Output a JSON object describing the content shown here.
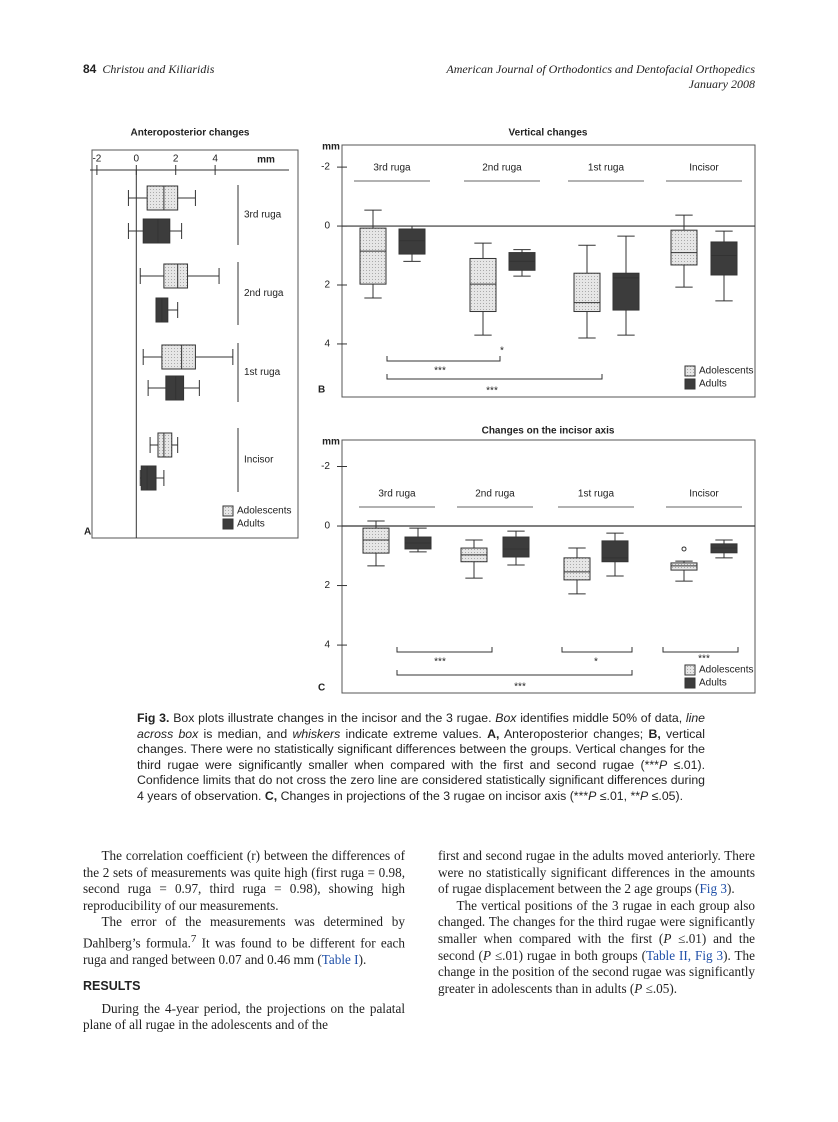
{
  "header": {
    "page": "84",
    "authors": "Christou and Kiliaridis",
    "journal": "American Journal of Orthodontics and Dentofacial Orthopedics",
    "date": "January 2008"
  },
  "figure": {
    "panels": [
      {
        "letter": "A",
        "title": "Anteroposterior changes",
        "unit": "mm",
        "lim": [
          -2.35,
          7.75
        ],
        "ticks": [
          -2,
          0,
          2,
          4
        ],
        "groups": [
          "3rd ruga",
          "2nd ruga",
          "1st ruga",
          "Incisor"
        ],
        "series": [
          {
            "name": "Adolescents",
            "color": "#dcdcdc",
            "boxes": [
              {
                "min": -0.4,
                "q1": 0.55,
                "median": 1.4,
                "q3": 2.1,
                "max": 3.0
              },
              {
                "min": 0.2,
                "q1": 1.4,
                "median": 2.1,
                "q3": 2.6,
                "max": 4.2
              },
              {
                "min": 0.35,
                "q1": 1.3,
                "median": 2.3,
                "q3": 3.0,
                "max": 4.9
              },
              {
                "min": 0.7,
                "q1": 1.1,
                "median": 1.4,
                "q3": 1.8,
                "max": 2.1
              }
            ]
          },
          {
            "name": "Adults",
            "color": "#3c3c3c",
            "boxes": [
              {
                "min": -0.4,
                "q1": 0.35,
                "median": 1.1,
                "q3": 1.7,
                "max": 2.3
              },
              {
                "min": 1.0,
                "q1": 1.0,
                "median": 1.3,
                "q3": 1.6,
                "max": 2.1
              },
              {
                "min": 0.6,
                "q1": 1.5,
                "median": 2.0,
                "q3": 2.4,
                "max": 3.2
              },
              {
                "min": 0.2,
                "q1": 0.25,
                "median": 0.55,
                "q3": 1.0,
                "max": 1.4
              }
            ]
          }
        ]
      },
      {
        "letter": "B",
        "title": "Vertical changes",
        "unit": "mm",
        "lim": [
          -2.75,
          5.8
        ],
        "ticks": [
          -2,
          0,
          2,
          4
        ],
        "groups": [
          "3rd ruga",
          "2nd ruga",
          "1st ruga",
          "Incisor"
        ],
        "series": [
          {
            "name": "Adolescents",
            "color": "#dcdcdc",
            "boxes": [
              {
                "min": -0.54,
                "q1": 0.07,
                "median": 0.85,
                "q3": 1.97,
                "max": 2.44
              },
              {
                "min": 0.58,
                "q1": 1.1,
                "median": 1.97,
                "q3": 2.9,
                "max": 3.7
              },
              {
                "min": 0.65,
                "q1": 1.6,
                "median": 2.6,
                "q3": 2.9,
                "max": 3.8
              },
              {
                "min": -0.37,
                "q1": 0.14,
                "median": 0.9,
                "q3": 1.32,
                "max": 2.07
              }
            ]
          },
          {
            "name": "Adults",
            "color": "#3c3c3c",
            "boxes": [
              {
                "min": 0.0,
                "q1": 0.1,
                "median": 0.5,
                "q3": 0.95,
                "max": 1.2
              },
              {
                "min": 0.8,
                "q1": 0.9,
                "median": 1.2,
                "q3": 1.5,
                "max": 1.7
              },
              {
                "min": 0.34,
                "q1": 1.6,
                "median": 1.76,
                "q3": 2.85,
                "max": 3.7
              },
              {
                "min": 0.17,
                "q1": 0.54,
                "median": 1.0,
                "q3": 1.66,
                "max": 2.54
              }
            ]
          }
        ],
        "significance": [
          "*",
          "***",
          "***"
        ]
      },
      {
        "letter": "C",
        "title": "Changes on the incisor axis",
        "unit": "mm",
        "lim": [
          -2.89,
          5.61
        ],
        "ticks": [
          -2,
          0,
          2,
          4
        ],
        "groups": [
          "3rd ruga",
          "2nd ruga",
          "1st ruga",
          "Incisor"
        ],
        "series": [
          {
            "name": "Adolescents",
            "color": "#dcdcdc",
            "boxes": [
              {
                "min": -0.17,
                "q1": 0.07,
                "median": 0.47,
                "q3": 0.91,
                "max": 1.34
              },
              {
                "min": 0.47,
                "q1": 0.74,
                "median": 0.97,
                "q3": 1.2,
                "max": 1.75
              },
              {
                "min": 0.74,
                "q1": 1.07,
                "median": 1.54,
                "q3": 1.81,
                "max": 2.28
              },
              {
                "min": 1.18,
                "q1": 1.24,
                "median": 1.34,
                "q3": 1.48,
                "max": 1.85,
                "outlier": 0.77
              }
            ]
          },
          {
            "name": "Adults",
            "color": "#3c3c3c",
            "boxes": [
              {
                "min": 0.07,
                "q1": 0.37,
                "median": 0.57,
                "q3": 0.77,
                "max": 0.87
              },
              {
                "min": 0.17,
                "q1": 0.37,
                "median": 0.77,
                "q3": 1.04,
                "max": 1.31
              },
              {
                "min": 0.24,
                "q1": 0.5,
                "median": 1.07,
                "q3": 1.2,
                "max": 1.68
              },
              {
                "min": 0.47,
                "q1": 0.6,
                "median": 0.74,
                "q3": 0.9,
                "max": 1.07
              }
            ]
          }
        ],
        "significance": [
          "***",
          "*",
          "***",
          "***"
        ]
      }
    ],
    "caption": [
      "Fig 3.",
      "Box plots illustrate changes in the incisor and the 3 rugae.",
      "Box",
      "identifies middle 50% of data,",
      "line across box",
      "is median, and",
      "whiskers",
      "indicate extreme values.",
      "A,",
      "Anteroposterior changes;",
      "B,",
      "vertical changes. There were no statistically significant differences between the groups. Vertical changes for the third rugae were significantly smaller when compared with the first and second rugae (***",
      "P",
      "≤.01). Confidence limits that do not cross the zero line are considered statistically significant differences during 4 years of observation.",
      "C,",
      "Changes in projections of the 3 rugae on incisor axis (***",
      "P",
      "≤.01, **",
      "P",
      "≤.05)."
    ]
  },
  "body": {
    "left": [
      [
        "The correlation coefficient (r) between the differences of the 2 sets of measurements was quite high (first ruga = 0.98, second ruga = 0.97, third ruga = 0.98), showing high reproducibility of our measurements."
      ],
      [
        "The error of the measurements was determined by Dahlberg’s formula.",
        "7",
        "It was found to be different for each ruga and ranged between 0.07 and 0.46 mm (",
        "Table I",
        "). "
      ]
    ],
    "heading": "RESULTS",
    "left2": [
      "During the 4-year period, the projections on the palatal plane of all rugae in the adolescents and of the"
    ],
    "right": [
      [
        "first and second rugae in the adults moved anteriorly. There were no statistically significant differences in the amounts of rugae displacement between the 2 age groups (",
        "Fig 3",
        ")."
      ],
      [
        "The vertical positions of the 3 rugae in each group also changed. The changes for the third rugae were significantly smaller when compared with the first (",
        "P",
        "≤.01) and the second (",
        "P",
        "≤.01) rugae in both groups (",
        "Table II, Fig 3",
        "). The change in the position of the second rugae was significantly greater in adolescents than in adults (",
        "P",
        "≤.05)."
      ]
    ]
  }
}
